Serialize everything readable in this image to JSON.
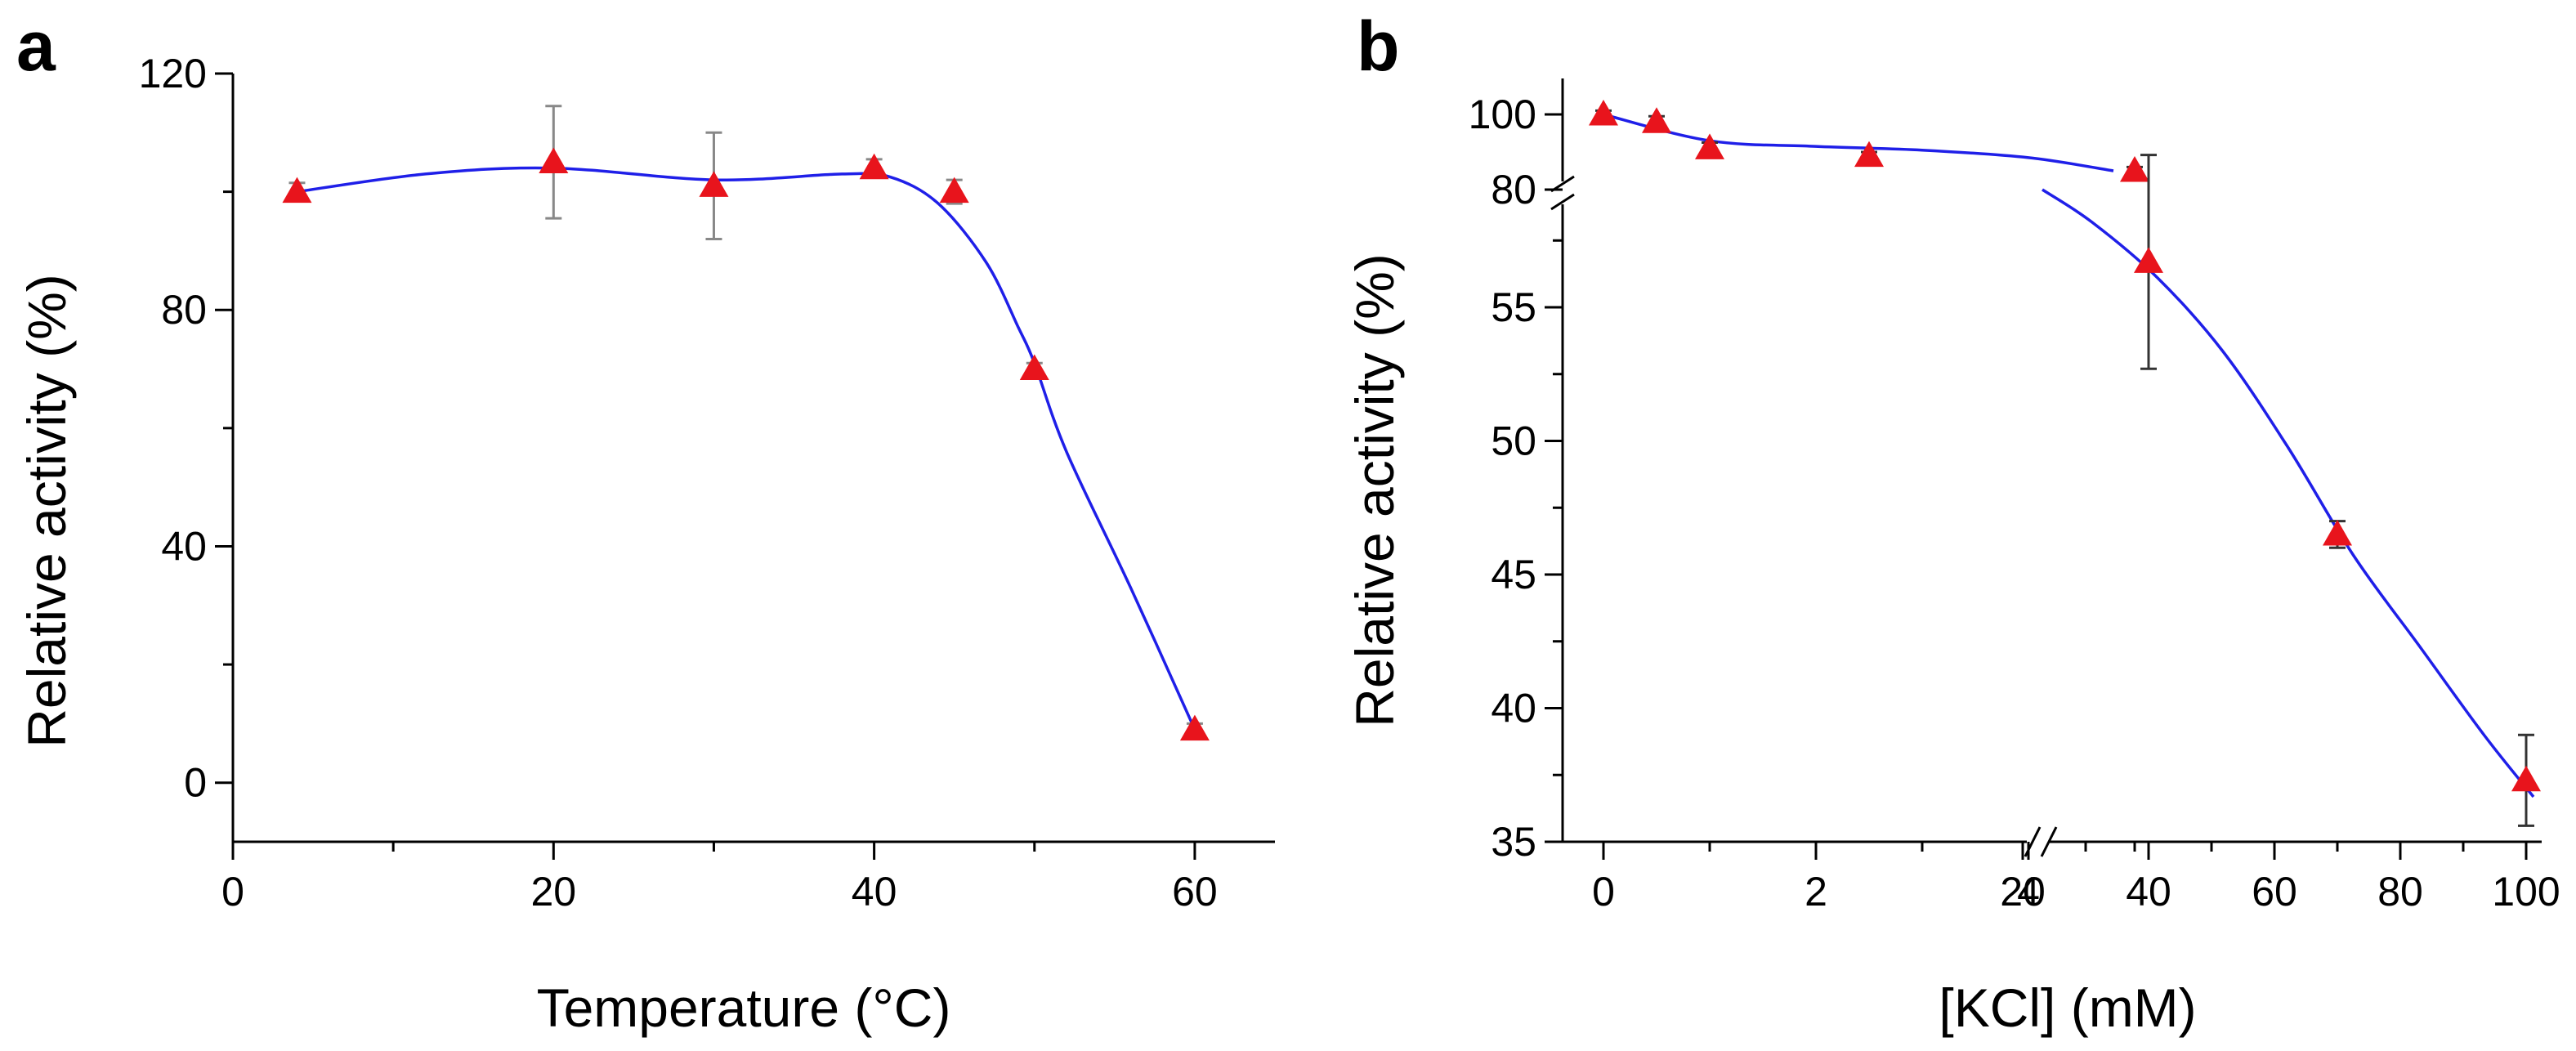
{
  "chart_data": [
    {
      "panel": "a",
      "type": "scatter",
      "xlabel": "Temperature (°C)",
      "ylabel": "Relative activity (%)",
      "xlim": [
        0,
        65
      ],
      "ylim": [
        -10,
        120
      ],
      "xticks": [
        0,
        20,
        40,
        60
      ],
      "yticks": [
        0,
        40,
        80,
        120
      ],
      "marker_color": "#e8141c",
      "line_color": "#1f1fe8",
      "points": [
        {
          "x": 4,
          "y": 100,
          "err": 1.5
        },
        {
          "x": 20,
          "y": 105,
          "err": 9.5
        },
        {
          "x": 30,
          "y": 101,
          "err": 9
        },
        {
          "x": 40,
          "y": 104,
          "err": 1.5
        },
        {
          "x": 45,
          "y": 100,
          "err": 2
        },
        {
          "x": 50,
          "y": 70,
          "err": 1
        },
        {
          "x": 60,
          "y": 9,
          "err": 1
        }
      ],
      "fit": [
        [
          4,
          100
        ],
        [
          12,
          103
        ],
        [
          20,
          104
        ],
        [
          30,
          102
        ],
        [
          38,
          103
        ],
        [
          41,
          102.5
        ],
        [
          44,
          98
        ],
        [
          47,
          88
        ],
        [
          49,
          77
        ],
        [
          50,
          71
        ],
        [
          52,
          56
        ],
        [
          56,
          33
        ],
        [
          60,
          9
        ]
      ]
    },
    {
      "panel": "b",
      "type": "scatter",
      "xlabel": "[KCl] (mM)",
      "ylabel": "Relative activity (%)",
      "x_break": true,
      "y_break": true,
      "xticks_left": [
        "0",
        "2",
        "4"
      ],
      "xticks_right": [
        "20",
        "40",
        "60",
        "80",
        "100"
      ],
      "yticks_lower": [
        "35",
        "40",
        "45",
        "50",
        "55"
      ],
      "yticks_upper": [
        "80",
        "100"
      ],
      "marker_color": "#e8141c",
      "line_color": "#1f1fe8",
      "points": [
        {
          "x": 0,
          "y": 100,
          "err": 1
        },
        {
          "x": 0.5,
          "y": 98,
          "err": 1.5
        },
        {
          "x": 1,
          "y": 91,
          "err": 1.5
        },
        {
          "x": 2.5,
          "y": 89,
          "err": 1
        },
        {
          "x": 5,
          "y": 85,
          "err": 1
        },
        {
          "x": 40,
          "y": 56.7,
          "err": 4
        },
        {
          "x": 70,
          "y": 46.5,
          "err": 0.5
        },
        {
          "x": 100,
          "y": 37.3,
          "err": 1.7
        }
      ]
    }
  ]
}
